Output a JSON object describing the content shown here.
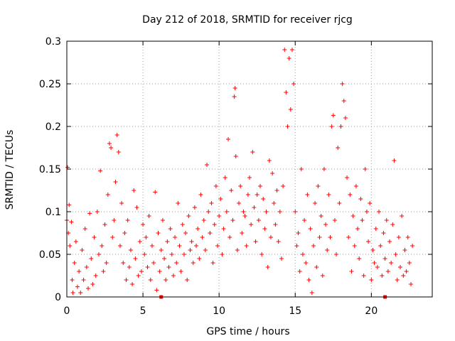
{
  "chart_data": {
    "type": "scatter",
    "title": "Day 212 of 2018, SRMTID for receiver rjcg",
    "xlabel": "GPS time / hours",
    "ylabel": "SRMTID / TECUs",
    "xlim": [
      0,
      24
    ],
    "ylim": [
      0,
      0.3
    ],
    "x_ticks": [
      "0",
      "5",
      "10",
      "15",
      "20"
    ],
    "y_ticks": [
      "0",
      "0.05",
      "0.1",
      "0.15",
      "0.2",
      "0.25",
      "0.3"
    ],
    "grid": true,
    "marker": "+",
    "color": "#ff0000",
    "axis_markers_x": [
      6.2,
      20.9
    ],
    "series": [
      {
        "name": "",
        "points": [
          [
            0.0,
            0.09
          ],
          [
            0.05,
            0.152
          ],
          [
            0.1,
            0.075
          ],
          [
            0.15,
            0.108
          ],
          [
            0.2,
            0.06
          ],
          [
            0.3,
            0.088
          ],
          [
            0.35,
            0.02
          ],
          [
            0.4,
            0.005
          ],
          [
            0.5,
            0.04
          ],
          [
            0.6,
            0.065
          ],
          [
            0.7,
            0.012
          ],
          [
            0.8,
            0.03
          ],
          [
            0.9,
            0.005
          ],
          [
            1.0,
            0.055
          ],
          [
            1.1,
            0.02
          ],
          [
            1.2,
            0.08
          ],
          [
            1.3,
            0.035
          ],
          [
            1.4,
            0.01
          ],
          [
            1.5,
            0.098
          ],
          [
            1.6,
            0.045
          ],
          [
            1.7,
            0.015
          ],
          [
            1.8,
            0.07
          ],
          [
            1.9,
            0.025
          ],
          [
            2.0,
            0.1
          ],
          [
            2.1,
            0.05
          ],
          [
            2.2,
            0.148
          ],
          [
            2.3,
            0.06
          ],
          [
            2.4,
            0.03
          ],
          [
            2.5,
            0.085
          ],
          [
            2.6,
            0.04
          ],
          [
            2.7,
            0.12
          ],
          [
            2.8,
            0.18
          ],
          [
            2.9,
            0.175
          ],
          [
            3.0,
            0.07
          ],
          [
            3.1,
            0.09
          ],
          [
            3.2,
            0.135
          ],
          [
            3.3,
            0.19
          ],
          [
            3.4,
            0.17
          ],
          [
            3.5,
            0.06
          ],
          [
            3.6,
            0.11
          ],
          [
            3.7,
            0.04
          ],
          [
            3.8,
            0.075
          ],
          [
            3.9,
            0.02
          ],
          [
            4.0,
            0.09
          ],
          [
            4.1,
            0.035
          ],
          [
            4.2,
            0.055
          ],
          [
            4.3,
            0.015
          ],
          [
            4.4,
            0.125
          ],
          [
            4.5,
            0.045
          ],
          [
            4.6,
            0.105
          ],
          [
            4.7,
            0.025
          ],
          [
            4.8,
            0.065
          ],
          [
            4.9,
            0.03
          ],
          [
            5.0,
            0.085
          ],
          [
            5.1,
            0.05
          ],
          [
            5.2,
            0.07
          ],
          [
            5.3,
            0.035
          ],
          [
            5.4,
            0.095
          ],
          [
            5.5,
            0.02
          ],
          [
            5.6,
            0.06
          ],
          [
            5.7,
            0.04
          ],
          [
            5.8,
            0.123
          ],
          [
            5.9,
            0.008
          ],
          [
            6.0,
            0.075
          ],
          [
            6.1,
            0.03
          ],
          [
            6.2,
            0.055
          ],
          [
            6.3,
            0.09
          ],
          [
            6.4,
            0.045
          ],
          [
            6.5,
            0.02
          ],
          [
            6.6,
            0.065
          ],
          [
            6.7,
            0.035
          ],
          [
            6.8,
            0.08
          ],
          [
            6.9,
            0.05
          ],
          [
            7.0,
            0.025
          ],
          [
            7.1,
            0.07
          ],
          [
            7.2,
            0.04
          ],
          [
            7.3,
            0.11
          ],
          [
            7.4,
            0.06
          ],
          [
            7.5,
            0.03
          ],
          [
            7.6,
            0.085
          ],
          [
            7.7,
            0.05
          ],
          [
            7.8,
            0.075
          ],
          [
            7.9,
            0.02
          ],
          [
            8.0,
            0.095
          ],
          [
            8.1,
            0.055
          ],
          [
            8.2,
            0.065
          ],
          [
            8.3,
            0.04
          ],
          [
            8.4,
            0.105
          ],
          [
            8.5,
            0.06
          ],
          [
            8.6,
            0.08
          ],
          [
            8.7,
            0.045
          ],
          [
            8.8,
            0.12
          ],
          [
            8.9,
            0.07
          ],
          [
            9.0,
            0.09
          ],
          [
            9.1,
            0.055
          ],
          [
            9.2,
            0.155
          ],
          [
            9.3,
            0.1
          ],
          [
            9.4,
            0.075
          ],
          [
            9.5,
            0.11
          ],
          [
            9.6,
            0.04
          ],
          [
            9.7,
            0.085
          ],
          [
            9.8,
            0.13
          ],
          [
            9.9,
            0.06
          ],
          [
            10.0,
            0.095
          ],
          [
            10.1,
            0.115
          ],
          [
            10.2,
            0.05
          ],
          [
            10.3,
            0.08
          ],
          [
            10.4,
            0.14
          ],
          [
            10.5,
            0.1
          ],
          [
            10.6,
            0.185
          ],
          [
            10.7,
            0.07
          ],
          [
            10.8,
            0.125
          ],
          [
            10.9,
            0.09
          ],
          [
            11.0,
            0.235
          ],
          [
            11.05,
            0.245
          ],
          [
            11.1,
            0.165
          ],
          [
            11.2,
            0.055
          ],
          [
            11.3,
            0.11
          ],
          [
            11.4,
            0.13
          ],
          [
            11.5,
            0.075
          ],
          [
            11.6,
            0.1
          ],
          [
            11.7,
            0.095
          ],
          [
            11.8,
            0.06
          ],
          [
            11.9,
            0.12
          ],
          [
            12.0,
            0.14
          ],
          [
            12.1,
            0.085
          ],
          [
            12.2,
            0.17
          ],
          [
            12.3,
            0.105
          ],
          [
            12.4,
            0.065
          ],
          [
            12.5,
            0.12
          ],
          [
            12.6,
            0.09
          ],
          [
            12.7,
            0.13
          ],
          [
            12.8,
            0.05
          ],
          [
            12.9,
            0.115
          ],
          [
            13.0,
            0.08
          ],
          [
            13.1,
            0.1
          ],
          [
            13.2,
            0.035
          ],
          [
            13.3,
            0.16
          ],
          [
            13.4,
            0.07
          ],
          [
            13.5,
            0.145
          ],
          [
            13.6,
            0.11
          ],
          [
            13.7,
            0.085
          ],
          [
            13.8,
            0.125
          ],
          [
            13.9,
            0.065
          ],
          [
            14.0,
            0.1
          ],
          [
            14.1,
            0.045
          ],
          [
            14.2,
            0.13
          ],
          [
            14.3,
            0.29
          ],
          [
            14.4,
            0.24
          ],
          [
            14.5,
            0.2
          ],
          [
            14.6,
            0.28
          ],
          [
            14.7,
            0.22
          ],
          [
            14.8,
            0.29
          ],
          [
            14.9,
            0.25
          ],
          [
            15.0,
            0.1
          ],
          [
            15.1,
            0.06
          ],
          [
            15.2,
            0.075
          ],
          [
            15.3,
            0.03
          ],
          [
            15.4,
            0.15
          ],
          [
            15.5,
            0.05
          ],
          [
            15.6,
            0.09
          ],
          [
            15.7,
            0.04
          ],
          [
            15.8,
            0.12
          ],
          [
            15.9,
            0.02
          ],
          [
            16.0,
            0.08
          ],
          [
            16.1,
            0.005
          ],
          [
            16.2,
            0.06
          ],
          [
            16.3,
            0.11
          ],
          [
            16.4,
            0.035
          ],
          [
            16.5,
            0.13
          ],
          [
            16.6,
            0.07
          ],
          [
            16.7,
            0.095
          ],
          [
            16.8,
            0.025
          ],
          [
            16.9,
            0.15
          ],
          [
            17.0,
            0.085
          ],
          [
            17.1,
            0.055
          ],
          [
            17.2,
            0.12
          ],
          [
            17.3,
            0.07
          ],
          [
            17.4,
            0.2
          ],
          [
            17.5,
            0.213
          ],
          [
            17.6,
            0.09
          ],
          [
            17.7,
            0.05
          ],
          [
            17.8,
            0.175
          ],
          [
            17.9,
            0.11
          ],
          [
            18.0,
            0.2
          ],
          [
            18.1,
            0.25
          ],
          [
            18.2,
            0.23
          ],
          [
            18.3,
            0.21
          ],
          [
            18.4,
            0.14
          ],
          [
            18.5,
            0.07
          ],
          [
            18.6,
            0.12
          ],
          [
            18.7,
            0.03
          ],
          [
            18.8,
            0.095
          ],
          [
            18.9,
            0.06
          ],
          [
            19.0,
            0.13
          ],
          [
            19.1,
            0.08
          ],
          [
            19.2,
            0.045
          ],
          [
            19.3,
            0.115
          ],
          [
            19.4,
            0.09
          ],
          [
            19.5,
            0.025
          ],
          [
            19.6,
            0.15
          ],
          [
            19.7,
            0.1
          ],
          [
            19.8,
            0.065
          ],
          [
            19.9,
            0.11
          ],
          [
            20.0,
            0.02
          ],
          [
            20.1,
            0.055
          ],
          [
            20.2,
            0.04
          ],
          [
            20.3,
            0.08
          ],
          [
            20.4,
            0.035
          ],
          [
            20.5,
            0.1
          ],
          [
            20.6,
            0.06
          ],
          [
            20.7,
            0.025
          ],
          [
            20.8,
            0.075
          ],
          [
            20.9,
            0.045
          ],
          [
            21.0,
            0.09
          ],
          [
            21.1,
            0.03
          ],
          [
            21.2,
            0.065
          ],
          [
            21.3,
            0.04
          ],
          [
            21.4,
            0.085
          ],
          [
            21.5,
            0.16
          ],
          [
            21.6,
            0.05
          ],
          [
            21.7,
            0.02
          ],
          [
            21.8,
            0.07
          ],
          [
            21.9,
            0.035
          ],
          [
            22.0,
            0.095
          ],
          [
            22.1,
            0.025
          ],
          [
            22.2,
            0.055
          ],
          [
            22.3,
            0.03
          ],
          [
            22.4,
            0.07
          ],
          [
            22.5,
            0.04
          ],
          [
            22.6,
            0.015
          ],
          [
            22.7,
            0.06
          ]
        ]
      }
    ]
  }
}
